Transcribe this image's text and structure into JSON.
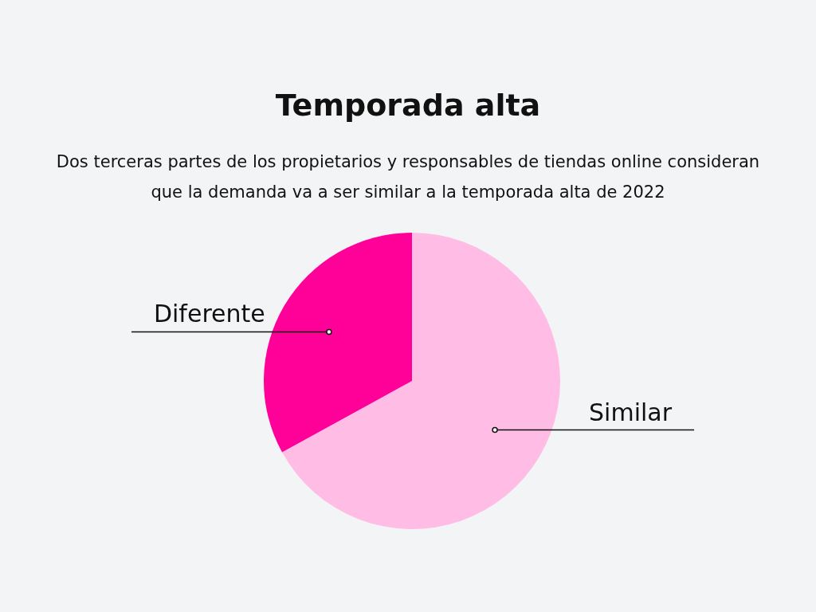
{
  "chart_data": {
    "type": "pie",
    "title": "Temporada alta",
    "subtitle": "Dos terceras partes de los propietarios y responsables de tiendas online consideran que la demanda va a ser similar a la temporada alta de 2022",
    "categories": [
      "Similar",
      "Diferente"
    ],
    "values": [
      67,
      33
    ],
    "colors": [
      "#ffbde6",
      "#ff0099"
    ]
  }
}
